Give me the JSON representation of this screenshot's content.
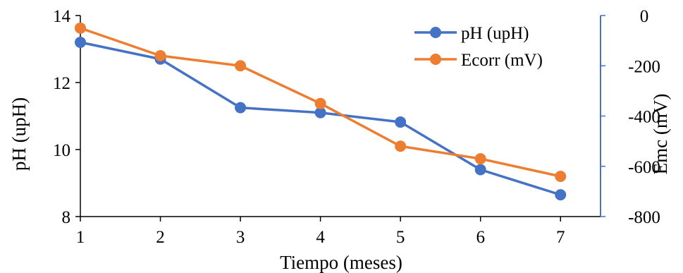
{
  "chart_data": {
    "type": "line",
    "x": [
      1,
      2,
      3,
      4,
      5,
      6,
      7
    ],
    "xlabel": "Tiempo (meses)",
    "ylabel": "pH (upH)",
    "y2label": "Emc (mV)",
    "xlim": [
      1,
      7.5
    ],
    "ylim": [
      8,
      14
    ],
    "y2lim": [
      -800,
      0
    ],
    "xticks": [
      "1",
      "2",
      "3",
      "4",
      "5",
      "6",
      "7"
    ],
    "yticks": [
      "8",
      "10",
      "12",
      "14"
    ],
    "y2ticks": [
      "0",
      "-200",
      "-400",
      "-600",
      "-800"
    ],
    "grid": false,
    "legend_position": "top-right",
    "series": [
      {
        "name": "pH (upH)",
        "axis": "left",
        "color": "#4472C4",
        "values": [
          13.2,
          12.7,
          11.25,
          11.1,
          10.82,
          9.4,
          8.65
        ]
      },
      {
        "name": "Ecorr (mV)",
        "axis": "right",
        "color": "#ED7D31",
        "values": [
          -50,
          -160,
          -200,
          -350,
          -520,
          -570,
          -640
        ]
      }
    ],
    "axis_colors": {
      "left": "#000000",
      "right": "#4472C4",
      "bottom": "#000000"
    }
  }
}
